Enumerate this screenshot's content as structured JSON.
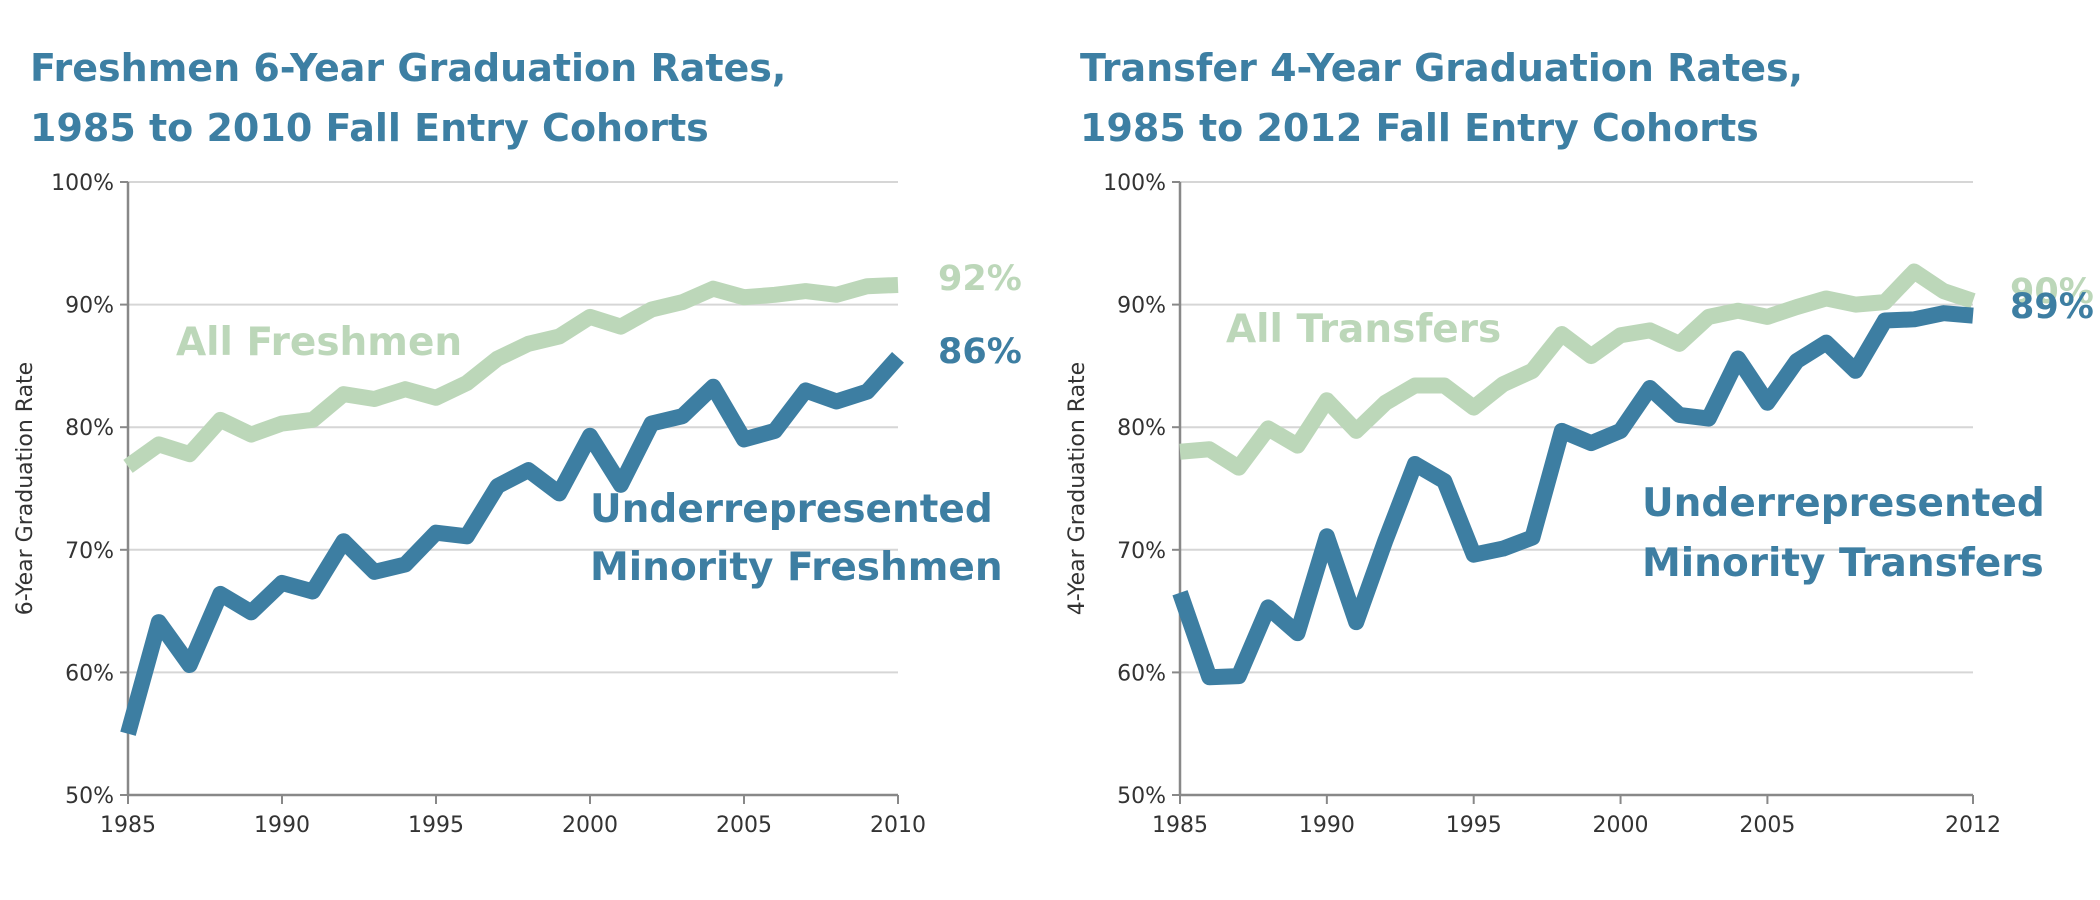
{
  "chart_data": [
    {
      "type": "line",
      "title_lines": [
        "Freshmen 6-Year Graduation Rates,",
        "1985 to 2010 Fall Entry Cohorts"
      ],
      "xlabel": "",
      "ylabel": "6-Year Graduation Rate",
      "xlim": [
        1985,
        2010
      ],
      "ylim": [
        50,
        100
      ],
      "y_ticks": [
        50,
        60,
        70,
        80,
        90,
        100
      ],
      "y_tick_labels": [
        "50%",
        "60%",
        "70%",
        "80%",
        "90%",
        "100%"
      ],
      "x_ticks": [
        1985,
        1990,
        1995,
        2000,
        2005,
        2010
      ],
      "x_tick_labels": [
        "1985",
        "1990",
        "1995",
        "2000",
        "2005",
        "2010"
      ],
      "grid": true,
      "legend": "none",
      "x": [
        1985,
        1986,
        1987,
        1988,
        1989,
        1990,
        1991,
        1992,
        1993,
        1994,
        1995,
        1996,
        1997,
        1998,
        1999,
        2000,
        2001,
        2002,
        2003,
        2004,
        2005,
        2006,
        2007,
        2008,
        2009,
        2010
      ],
      "series": [
        {
          "name": "All Freshmen",
          "color": "#bcd7b9",
          "end_label": "92%",
          "values": [
            76.8,
            78.6,
            77.8,
            80.6,
            79.4,
            80.3,
            80.6,
            82.7,
            82.3,
            83.1,
            82.4,
            83.6,
            85.6,
            86.8,
            87.4,
            89.0,
            88.2,
            89.6,
            90.2,
            91.3,
            90.6,
            90.8,
            91.1,
            90.8,
            91.5,
            91.6
          ]
        },
        {
          "name": "Underrepresented Minority Freshmen",
          "name_lines": [
            "Underrepresented",
            "Minority Freshmen"
          ],
          "color": "#3d7ea2",
          "end_label": "86%",
          "values": [
            55.0,
            64.1,
            60.6,
            66.4,
            64.9,
            67.3,
            66.6,
            70.7,
            68.2,
            68.8,
            71.4,
            71.1,
            75.2,
            76.5,
            74.6,
            79.3,
            75.3,
            80.3,
            80.9,
            83.3,
            79.0,
            79.7,
            83.0,
            82.1,
            82.9,
            85.7
          ]
        }
      ]
    },
    {
      "type": "line",
      "title_lines": [
        "Transfer 4-Year Graduation Rates,",
        "1985 to 2012 Fall Entry Cohorts"
      ],
      "xlabel": "",
      "ylabel": "4-Year Graduation Rate",
      "xlim": [
        1985,
        2012
      ],
      "ylim": [
        50,
        100
      ],
      "y_ticks": [
        50,
        60,
        70,
        80,
        90,
        100
      ],
      "y_tick_labels": [
        "50%",
        "60%",
        "70%",
        "80%",
        "90%",
        "100%"
      ],
      "x_ticks": [
        1985,
        1990,
        1995,
        2000,
        2005,
        2012
      ],
      "x_tick_labels": [
        "1985",
        "1990",
        "1995",
        "2000",
        "2005",
        "2012"
      ],
      "grid": true,
      "legend": "none",
      "x": [
        1985,
        1986,
        1987,
        1988,
        1989,
        1990,
        1991,
        1992,
        1993,
        1994,
        1995,
        1996,
        1997,
        1998,
        1999,
        2000,
        2001,
        2002,
        2003,
        2004,
        2005,
        2006,
        2007,
        2008,
        2009,
        2010,
        2011,
        2012
      ],
      "series": [
        {
          "name": "All Transfers",
          "color": "#bcd7b9",
          "end_label": "90%",
          "values": [
            78.0,
            78.2,
            76.7,
            79.9,
            78.5,
            82.2,
            79.7,
            82.0,
            83.4,
            83.4,
            81.6,
            83.5,
            84.6,
            87.6,
            85.8,
            87.5,
            87.9,
            86.8,
            89.0,
            89.5,
            89.0,
            89.8,
            90.5,
            90.0,
            90.2,
            92.7,
            91.1,
            90.3
          ]
        },
        {
          "name": "Underrepresented Minority Transfers",
          "name_lines": [
            "Underrepresented",
            "Minority Transfers"
          ],
          "color": "#3d7ea2",
          "end_label": "89%",
          "values": [
            66.5,
            59.6,
            59.7,
            65.3,
            63.2,
            71.1,
            64.1,
            70.8,
            77.0,
            75.6,
            69.6,
            70.1,
            71.0,
            79.7,
            78.7,
            79.7,
            83.2,
            81.0,
            80.7,
            85.6,
            82.0,
            85.4,
            86.9,
            84.6,
            88.7,
            88.8,
            89.3,
            89.1
          ]
        }
      ]
    }
  ]
}
